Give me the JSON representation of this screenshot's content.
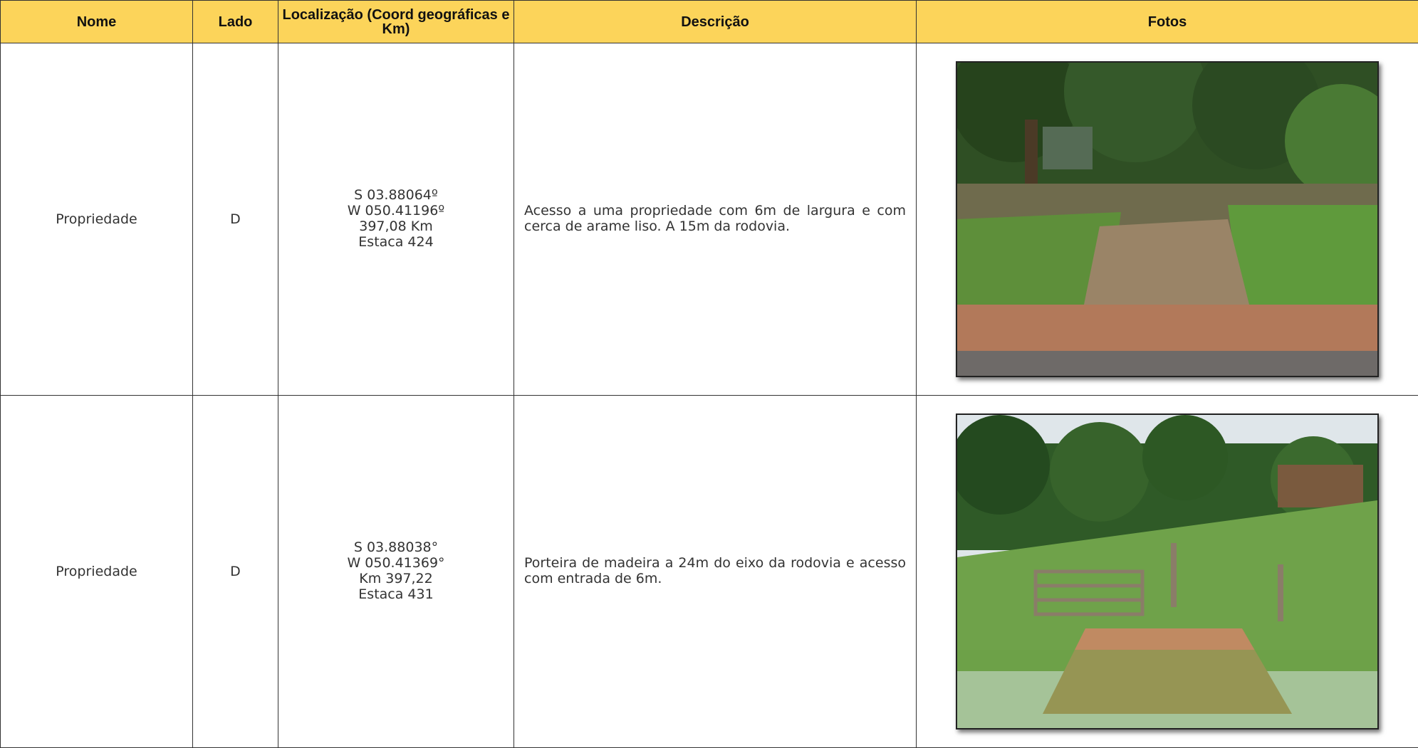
{
  "table": {
    "header": [
      "Nome",
      "Lado",
      "Localização (Coord geográficas e Km)",
      "Descrição",
      "Fotos"
    ],
    "rows": [
      {
        "nome": "Propriedade",
        "lado": "D",
        "localizacao": [
          "S 03.88064º",
          "W 050.41196º",
          "397,08 Km",
          "Estaca 424"
        ],
        "descricao": "Acesso a uma propriedade com 6m de largura e com cerca de arame liso. A 15m da rodovia."
      },
      {
        "nome": "Propriedade",
        "lado": "D",
        "localizacao": [
          "S 03.88038°",
          "W 050.41369°",
          "Km 397,22",
          "Estaca 431"
        ],
        "descricao": "Porteira de madeira a 24m do eixo da rodovia e acesso com entrada de 6m."
      }
    ]
  }
}
